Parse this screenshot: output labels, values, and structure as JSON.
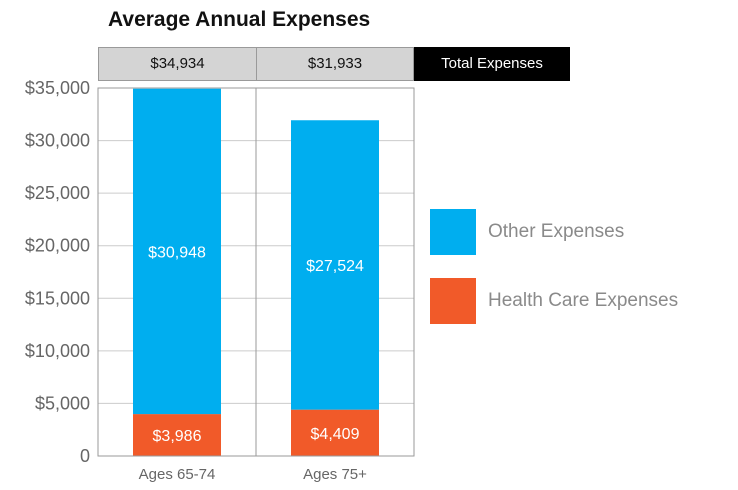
{
  "chart_data": {
    "type": "bar",
    "stacked": true,
    "title": "Average Annual Expenses",
    "categories": [
      "Ages 65-74",
      "Ages 75+"
    ],
    "series": [
      {
        "name": "Health Care Expenses",
        "values": [
          3986,
          4409
        ],
        "labels": [
          "$3,986",
          "$4,409"
        ],
        "color": "#f15a29"
      },
      {
        "name": "Other Expenses",
        "values": [
          30948,
          27524
        ],
        "labels": [
          "$30,948",
          "$27,524"
        ],
        "color": "#00aeef"
      }
    ],
    "totals": {
      "label": "Total Expenses",
      "values": [
        34934,
        31933
      ],
      "labels": [
        "$34,934",
        "$31,933"
      ]
    },
    "ylim": [
      0,
      35000
    ],
    "yticks": [
      0,
      5000,
      10000,
      15000,
      20000,
      25000,
      30000,
      35000
    ],
    "ytick_labels": [
      "0",
      "$5,000",
      "$10,000",
      "$15,000",
      "$20,000",
      "$25,000",
      "$30,000",
      "$35,000"
    ],
    "grid": true,
    "legend_position": "right"
  }
}
